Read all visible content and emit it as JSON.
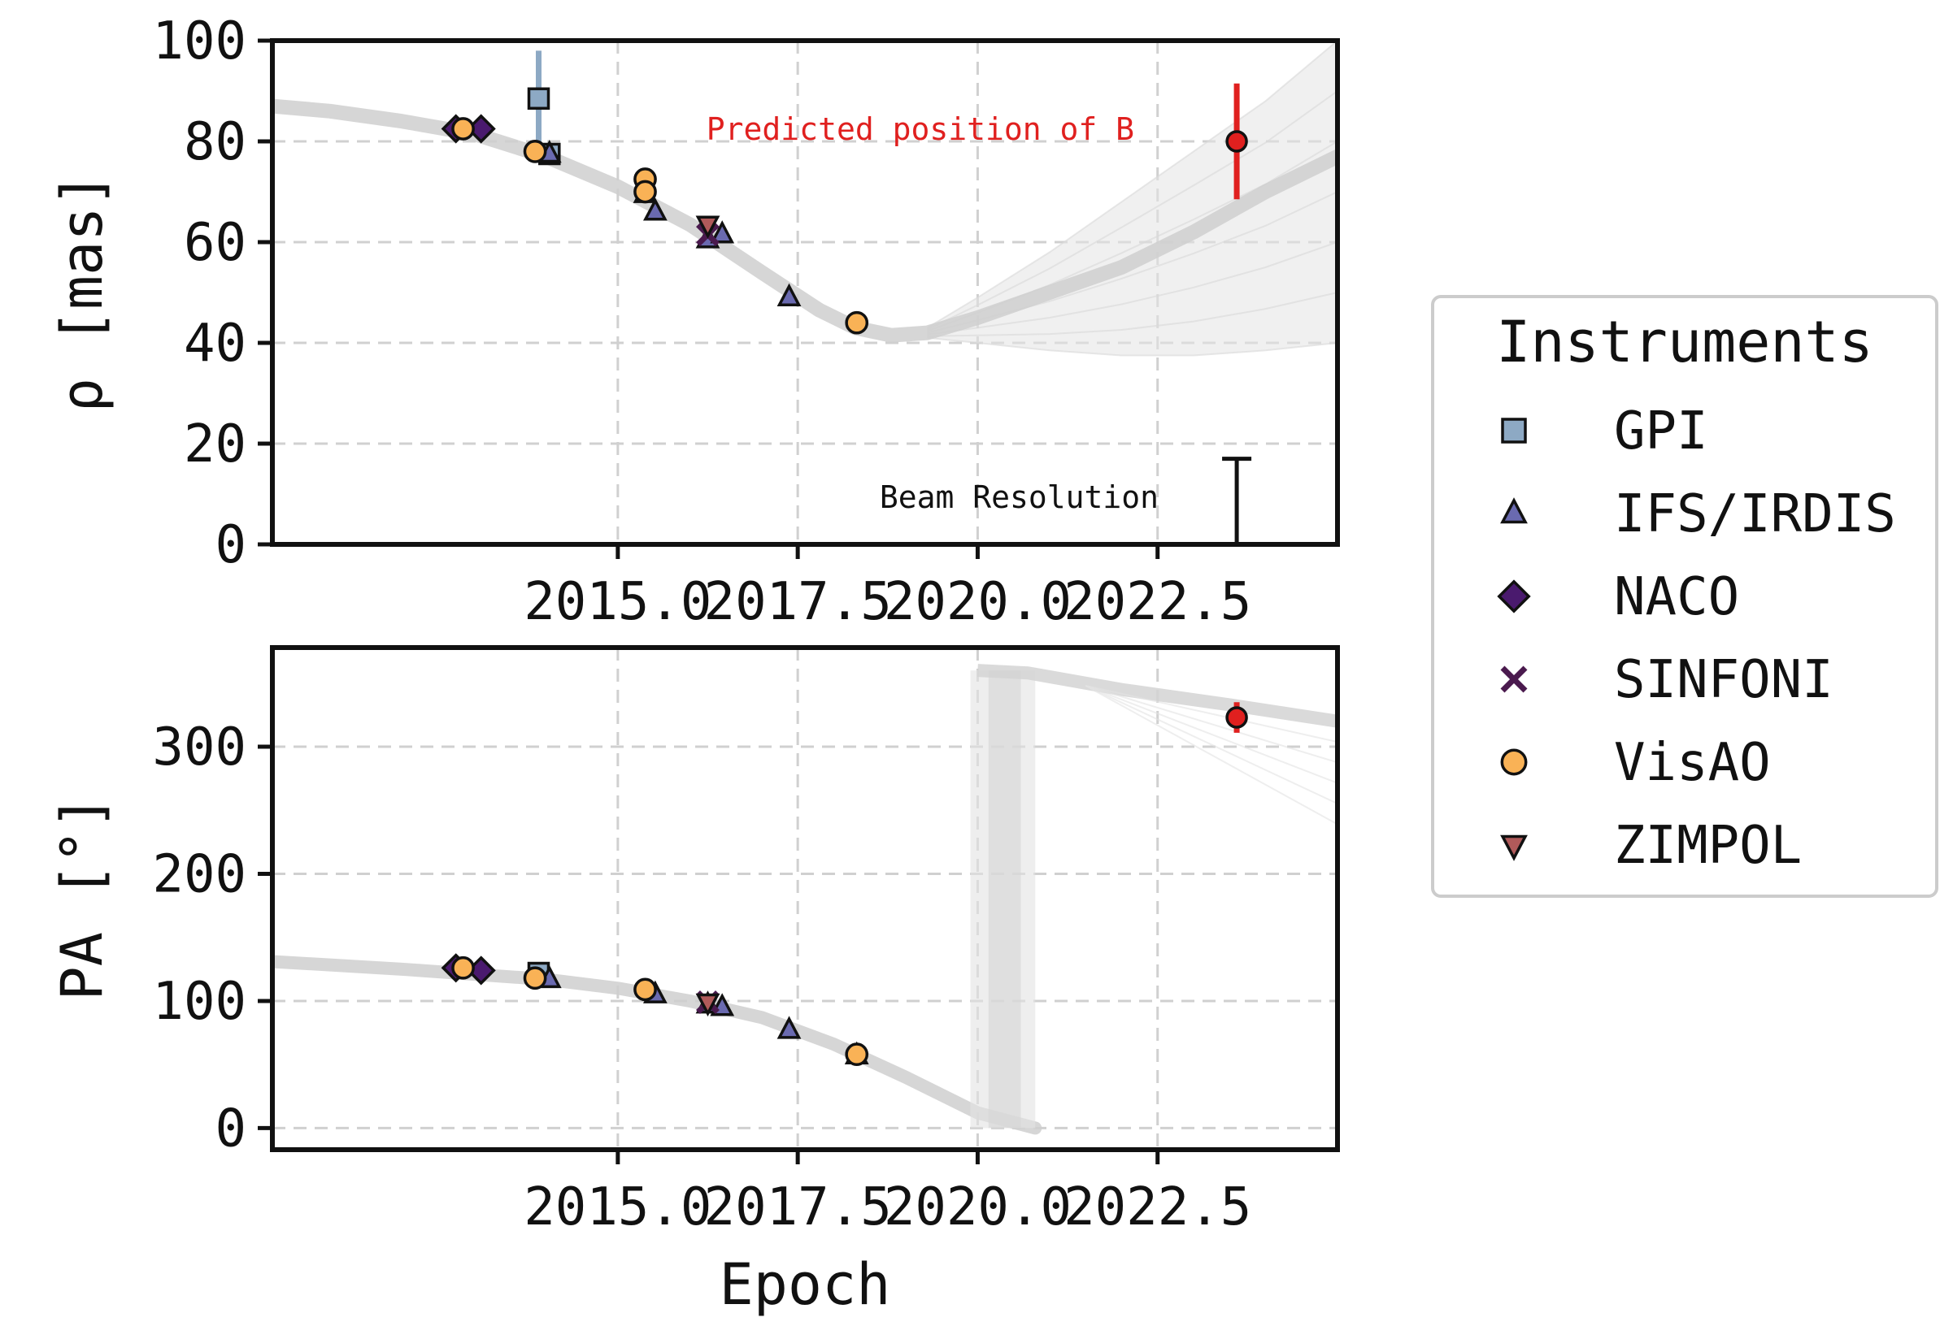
{
  "chart_data": [
    {
      "type": "scatter",
      "panel": "top",
      "ylabel": "ρ [mas]",
      "xlabel": "",
      "xlim": [
        2010.2,
        2025.0
      ],
      "ylim": [
        0,
        100
      ],
      "xticks": [
        2015.0,
        2017.5,
        2020.0,
        2022.5
      ],
      "xtick_labels": [
        "2015.0",
        "2017.5",
        "2020.0",
        "2022.5"
      ],
      "yticks": [
        0,
        20,
        40,
        60,
        80,
        100
      ],
      "ytick_labels": [
        "0",
        "20",
        "40",
        "60",
        "80",
        "100"
      ],
      "grid": true,
      "series": [
        {
          "name": "GPI",
          "marker": "square",
          "color": "#8da9c4",
          "points": [
            {
              "x": 2013.9,
              "y": 88.5,
              "err": 9.5
            },
            {
              "x": 2014.05,
              "y": 77.5
            }
          ]
        },
        {
          "name": "IFS/IRDIS",
          "marker": "triangle",
          "color": "#6a6ab0",
          "points": [
            {
              "x": 2014.05,
              "y": 77.5
            },
            {
              "x": 2015.38,
              "y": 69.5
            },
            {
              "x": 2015.52,
              "y": 66.0
            },
            {
              "x": 2016.25,
              "y": 60.5
            },
            {
              "x": 2016.45,
              "y": 61.5
            },
            {
              "x": 2017.38,
              "y": 49.0
            }
          ]
        },
        {
          "name": "NACO",
          "marker": "diamond",
          "color": "#4a1a6e",
          "points": [
            {
              "x": 2012.75,
              "y": 82.5
            },
            {
              "x": 2013.1,
              "y": 82.5
            }
          ]
        },
        {
          "name": "SINFONI",
          "marker": "x",
          "color": "#4a1a4e",
          "points": [
            {
              "x": 2016.25,
              "y": 61.5
            }
          ]
        },
        {
          "name": "VisAO",
          "marker": "circle",
          "color": "#f9b256",
          "points": [
            {
              "x": 2012.85,
              "y": 82.5
            },
            {
              "x": 2013.85,
              "y": 78.0
            },
            {
              "x": 2015.38,
              "y": 72.5
            },
            {
              "x": 2015.38,
              "y": 70.0
            },
            {
              "x": 2018.32,
              "y": 44.0
            }
          ]
        },
        {
          "name": "ZIMPOL",
          "marker": "triangle-down",
          "color": "#b05a5a",
          "points": [
            {
              "x": 2016.25,
              "y": 63.5
            }
          ]
        }
      ],
      "predicted_B": {
        "label": "Predicted position of B",
        "x": 2023.6,
        "y": 80.0,
        "err": 11.5,
        "color": "#e0201f"
      },
      "beam_resolution": {
        "label": "Beam Resolution",
        "x": 2023.6,
        "height": 17.0
      },
      "orbit_tracks": {
        "mean_x": [
          2010.2,
          2011.0,
          2012.0,
          2013.0,
          2014.0,
          2015.0,
          2016.0,
          2017.0,
          2017.8,
          2018.3,
          2018.8,
          2019.3,
          2020.0,
          2021.0,
          2022.0,
          2023.0,
          2024.0,
          2025.0
        ],
        "mean_y": [
          87.0,
          86.0,
          84.0,
          81.5,
          77.0,
          71.0,
          63.5,
          54.0,
          46.5,
          43.0,
          41.5,
          42.0,
          45.0,
          50.0,
          55.0,
          62.0,
          70.0,
          77.0
        ],
        "spread_x": [
          2019.3,
          2020.0,
          2021.0,
          2022.0,
          2023.0,
          2024.0,
          2025.0
        ],
        "upper": [
          43.0,
          49.0,
          58.0,
          68.0,
          78.0,
          88.0,
          100.0
        ],
        "lower": [
          41.0,
          40.0,
          38.5,
          37.5,
          37.5,
          38.5,
          40.0
        ]
      }
    },
    {
      "type": "scatter",
      "panel": "bottom",
      "ylabel": "PA [°]",
      "xlabel": "Epoch",
      "xlim": [
        2010.2,
        2025.0
      ],
      "ylim": [
        -17,
        378
      ],
      "xticks": [
        2015.0,
        2017.5,
        2020.0,
        2022.5
      ],
      "xtick_labels": [
        "2015.0",
        "2017.5",
        "2020.0",
        "2022.5"
      ],
      "yticks": [
        0,
        100,
        200,
        300
      ],
      "ytick_labels": [
        "0",
        "100",
        "200",
        "300"
      ],
      "grid": true,
      "series": [
        {
          "name": "GPI",
          "marker": "square",
          "color": "#8da9c4",
          "points": [
            {
              "x": 2013.9,
              "y": 122.0
            }
          ]
        },
        {
          "name": "IFS/IRDIS",
          "marker": "triangle",
          "color": "#6a6ab0",
          "points": [
            {
              "x": 2014.05,
              "y": 117.0
            },
            {
              "x": 2015.52,
              "y": 105.0
            },
            {
              "x": 2016.25,
              "y": 97.0
            },
            {
              "x": 2016.45,
              "y": 95.0
            },
            {
              "x": 2017.38,
              "y": 77.0
            },
            {
              "x": 2018.32,
              "y": 57.0
            }
          ]
        },
        {
          "name": "NACO",
          "marker": "diamond",
          "color": "#4a1a6e",
          "points": [
            {
              "x": 2012.75,
              "y": 126.0
            },
            {
              "x": 2013.1,
              "y": 124.0
            }
          ]
        },
        {
          "name": "SINFONI",
          "marker": "x",
          "color": "#4a1a4e",
          "points": [
            {
              "x": 2016.25,
              "y": 99.0
            }
          ]
        },
        {
          "name": "VisAO",
          "marker": "circle",
          "color": "#f9b256",
          "points": [
            {
              "x": 2012.85,
              "y": 126.0
            },
            {
              "x": 2013.85,
              "y": 118.0
            },
            {
              "x": 2015.38,
              "y": 109.0
            },
            {
              "x": 2018.32,
              "y": 58.0
            }
          ]
        },
        {
          "name": "ZIMPOL",
          "marker": "triangle-down",
          "color": "#b05a5a",
          "points": [
            {
              "x": 2016.25,
              "y": 99.0
            }
          ]
        }
      ],
      "predicted_B": {
        "x": 2023.6,
        "y": 323.0,
        "err": 12.0,
        "color": "#e0201f"
      },
      "orbit_tracks": {
        "mean_x": [
          2010.2,
          2012.0,
          2014.0,
          2015.0,
          2016.0,
          2017.0,
          2018.0,
          2019.0,
          2020.0,
          2020.8
        ],
        "mean_y": [
          131.0,
          125.0,
          117.0,
          110.0,
          100.0,
          87.0,
          66.0,
          40.0,
          12.0,
          0.0
        ],
        "wrap_x_start": 2019.9,
        "wrap_x_end": 2020.8,
        "upper_x": [
          2020.0,
          2020.7,
          2022.0,
          2023.5,
          2025.0
        ],
        "upper_y": [
          360.0,
          358.0,
          345.0,
          333.0,
          320.0
        ]
      }
    }
  ],
  "legend": {
    "title": "Instruments",
    "placement": "right",
    "items": [
      {
        "label": "GPI",
        "marker": "square",
        "color": "#8da9c4"
      },
      {
        "label": "IFS/IRDIS",
        "marker": "triangle",
        "color": "#6a6ab0"
      },
      {
        "label": "NACO",
        "marker": "diamond",
        "color": "#4a1a6e"
      },
      {
        "label": "SINFONI",
        "marker": "x",
        "color": "#4a1a4e"
      },
      {
        "label": "VisAO",
        "marker": "circle",
        "color": "#f9b256"
      },
      {
        "label": "ZIMPOL",
        "marker": "triangle-down",
        "color": "#b05a5a"
      }
    ]
  }
}
